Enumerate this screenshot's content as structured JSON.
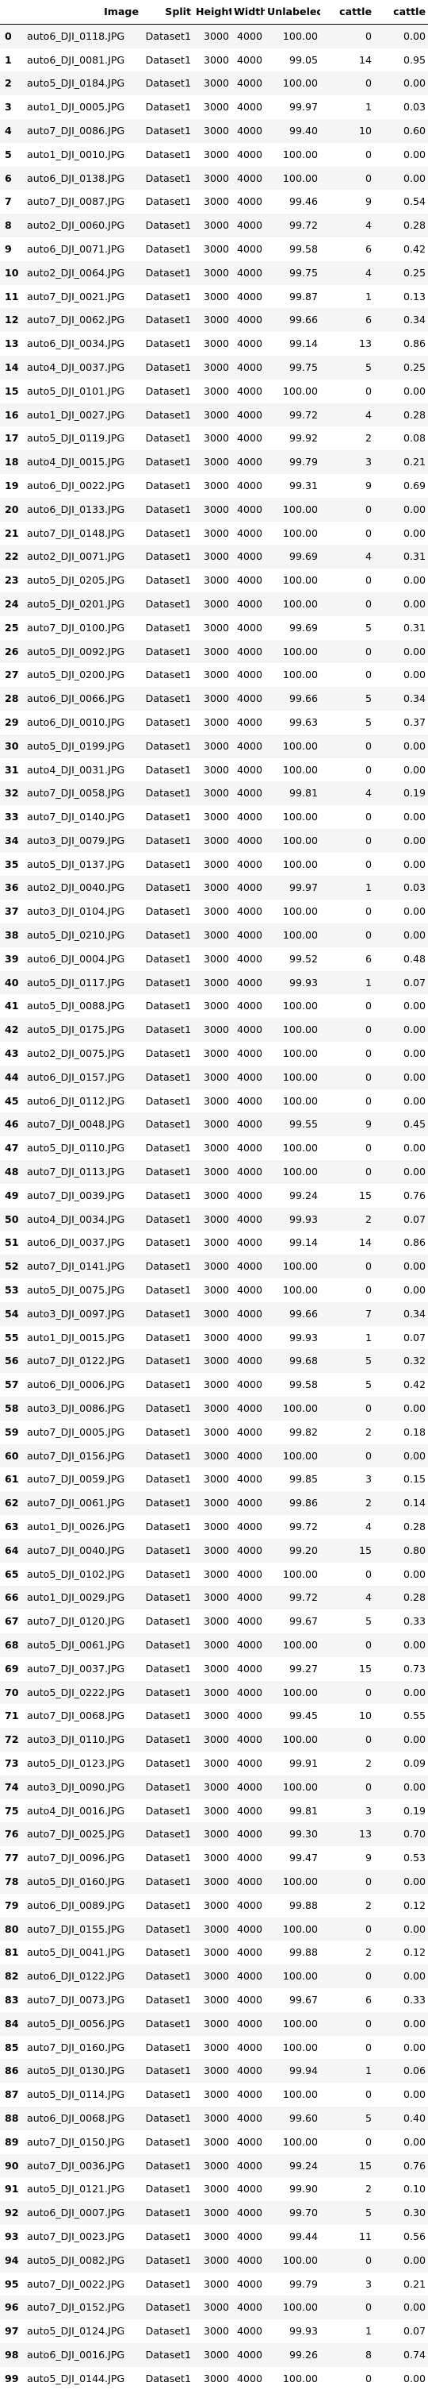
{
  "columns": [
    "",
    "Image",
    "Split",
    "Height",
    "Width",
    "Unlabeled",
    "cattle",
    "cattle"
  ],
  "rows": [
    [
      "0",
      "auto6_DJI_0118.JPG",
      "Dataset1",
      "3000",
      "4000",
      "100.00",
      "0",
      "0.00"
    ],
    [
      "1",
      "auto6_DJI_0081.JPG",
      "Dataset1",
      "3000",
      "4000",
      "99.05",
      "14",
      "0.95"
    ],
    [
      "2",
      "auto5_DJI_0184.JPG",
      "Dataset1",
      "3000",
      "4000",
      "100.00",
      "0",
      "0.00"
    ],
    [
      "3",
      "auto1_DJI_0005.JPG",
      "Dataset1",
      "3000",
      "4000",
      "99.97",
      "1",
      "0.03"
    ],
    [
      "4",
      "auto7_DJI_0086.JPG",
      "Dataset1",
      "3000",
      "4000",
      "99.40",
      "10",
      "0.60"
    ],
    [
      "5",
      "auto1_DJI_0010.JPG",
      "Dataset1",
      "3000",
      "4000",
      "100.00",
      "0",
      "0.00"
    ],
    [
      "6",
      "auto6_DJI_0138.JPG",
      "Dataset1",
      "3000",
      "4000",
      "100.00",
      "0",
      "0.00"
    ],
    [
      "7",
      "auto7_DJI_0087.JPG",
      "Dataset1",
      "3000",
      "4000",
      "99.46",
      "9",
      "0.54"
    ],
    [
      "8",
      "auto2_DJI_0060.JPG",
      "Dataset1",
      "3000",
      "4000",
      "99.72",
      "4",
      "0.28"
    ],
    [
      "9",
      "auto6_DJI_0071.JPG",
      "Dataset1",
      "3000",
      "4000",
      "99.58",
      "6",
      "0.42"
    ],
    [
      "10",
      "auto2_DJI_0064.JPG",
      "Dataset1",
      "3000",
      "4000",
      "99.75",
      "4",
      "0.25"
    ],
    [
      "11",
      "auto7_DJI_0021.JPG",
      "Dataset1",
      "3000",
      "4000",
      "99.87",
      "1",
      "0.13"
    ],
    [
      "12",
      "auto7_DJI_0062.JPG",
      "Dataset1",
      "3000",
      "4000",
      "99.66",
      "6",
      "0.34"
    ],
    [
      "13",
      "auto6_DJI_0034.JPG",
      "Dataset1",
      "3000",
      "4000",
      "99.14",
      "13",
      "0.86"
    ],
    [
      "14",
      "auto4_DJI_0037.JPG",
      "Dataset1",
      "3000",
      "4000",
      "99.75",
      "5",
      "0.25"
    ],
    [
      "15",
      "auto5_DJI_0101.JPG",
      "Dataset1",
      "3000",
      "4000",
      "100.00",
      "0",
      "0.00"
    ],
    [
      "16",
      "auto1_DJI_0027.JPG",
      "Dataset1",
      "3000",
      "4000",
      "99.72",
      "4",
      "0.28"
    ],
    [
      "17",
      "auto5_DJI_0119.JPG",
      "Dataset1",
      "3000",
      "4000",
      "99.92",
      "2",
      "0.08"
    ],
    [
      "18",
      "auto4_DJI_0015.JPG",
      "Dataset1",
      "3000",
      "4000",
      "99.79",
      "3",
      "0.21"
    ],
    [
      "19",
      "auto6_DJI_0022.JPG",
      "Dataset1",
      "3000",
      "4000",
      "99.31",
      "9",
      "0.69"
    ],
    [
      "20",
      "auto6_DJI_0133.JPG",
      "Dataset1",
      "3000",
      "4000",
      "100.00",
      "0",
      "0.00"
    ],
    [
      "21",
      "auto7_DJI_0148.JPG",
      "Dataset1",
      "3000",
      "4000",
      "100.00",
      "0",
      "0.00"
    ],
    [
      "22",
      "auto2_DJI_0071.JPG",
      "Dataset1",
      "3000",
      "4000",
      "99.69",
      "4",
      "0.31"
    ],
    [
      "23",
      "auto5_DJI_0205.JPG",
      "Dataset1",
      "3000",
      "4000",
      "100.00",
      "0",
      "0.00"
    ],
    [
      "24",
      "auto5_DJI_0201.JPG",
      "Dataset1",
      "3000",
      "4000",
      "100.00",
      "0",
      "0.00"
    ],
    [
      "25",
      "auto7_DJI_0100.JPG",
      "Dataset1",
      "3000",
      "4000",
      "99.69",
      "5",
      "0.31"
    ],
    [
      "26",
      "auto5_DJI_0092.JPG",
      "Dataset1",
      "3000",
      "4000",
      "100.00",
      "0",
      "0.00"
    ],
    [
      "27",
      "auto5_DJI_0200.JPG",
      "Dataset1",
      "3000",
      "4000",
      "100.00",
      "0",
      "0.00"
    ],
    [
      "28",
      "auto6_DJI_0066.JPG",
      "Dataset1",
      "3000",
      "4000",
      "99.66",
      "5",
      "0.34"
    ],
    [
      "29",
      "auto6_DJI_0010.JPG",
      "Dataset1",
      "3000",
      "4000",
      "99.63",
      "5",
      "0.37"
    ],
    [
      "30",
      "auto5_DJI_0199.JPG",
      "Dataset1",
      "3000",
      "4000",
      "100.00",
      "0",
      "0.00"
    ],
    [
      "31",
      "auto4_DJI_0031.JPG",
      "Dataset1",
      "3000",
      "4000",
      "100.00",
      "0",
      "0.00"
    ],
    [
      "32",
      "auto7_DJI_0058.JPG",
      "Dataset1",
      "3000",
      "4000",
      "99.81",
      "4",
      "0.19"
    ],
    [
      "33",
      "auto7_DJI_0140.JPG",
      "Dataset1",
      "3000",
      "4000",
      "100.00",
      "0",
      "0.00"
    ],
    [
      "34",
      "auto3_DJI_0079.JPG",
      "Dataset1",
      "3000",
      "4000",
      "100.00",
      "0",
      "0.00"
    ],
    [
      "35",
      "auto5_DJI_0137.JPG",
      "Dataset1",
      "3000",
      "4000",
      "100.00",
      "0",
      "0.00"
    ],
    [
      "36",
      "auto2_DJI_0040.JPG",
      "Dataset1",
      "3000",
      "4000",
      "99.97",
      "1",
      "0.03"
    ],
    [
      "37",
      "auto3_DJI_0104.JPG",
      "Dataset1",
      "3000",
      "4000",
      "100.00",
      "0",
      "0.00"
    ],
    [
      "38",
      "auto5_DJI_0210.JPG",
      "Dataset1",
      "3000",
      "4000",
      "100.00",
      "0",
      "0.00"
    ],
    [
      "39",
      "auto6_DJI_0004.JPG",
      "Dataset1",
      "3000",
      "4000",
      "99.52",
      "6",
      "0.48"
    ],
    [
      "40",
      "auto5_DJI_0117.JPG",
      "Dataset1",
      "3000",
      "4000",
      "99.93",
      "1",
      "0.07"
    ],
    [
      "41",
      "auto5_DJI_0088.JPG",
      "Dataset1",
      "3000",
      "4000",
      "100.00",
      "0",
      "0.00"
    ],
    [
      "42",
      "auto5_DJI_0175.JPG",
      "Dataset1",
      "3000",
      "4000",
      "100.00",
      "0",
      "0.00"
    ],
    [
      "43",
      "auto2_DJI_0075.JPG",
      "Dataset1",
      "3000",
      "4000",
      "100.00",
      "0",
      "0.00"
    ],
    [
      "44",
      "auto6_DJI_0157.JPG",
      "Dataset1",
      "3000",
      "4000",
      "100.00",
      "0",
      "0.00"
    ],
    [
      "45",
      "auto6_DJI_0112.JPG",
      "Dataset1",
      "3000",
      "4000",
      "100.00",
      "0",
      "0.00"
    ],
    [
      "46",
      "auto7_DJI_0048.JPG",
      "Dataset1",
      "3000",
      "4000",
      "99.55",
      "9",
      "0.45"
    ],
    [
      "47",
      "auto5_DJI_0110.JPG",
      "Dataset1",
      "3000",
      "4000",
      "100.00",
      "0",
      "0.00"
    ],
    [
      "48",
      "auto7_DJI_0113.JPG",
      "Dataset1",
      "3000",
      "4000",
      "100.00",
      "0",
      "0.00"
    ],
    [
      "49",
      "auto7_DJI_0039.JPG",
      "Dataset1",
      "3000",
      "4000",
      "99.24",
      "15",
      "0.76"
    ],
    [
      "50",
      "auto4_DJI_0034.JPG",
      "Dataset1",
      "3000",
      "4000",
      "99.93",
      "2",
      "0.07"
    ],
    [
      "51",
      "auto6_DJI_0037.JPG",
      "Dataset1",
      "3000",
      "4000",
      "99.14",
      "14",
      "0.86"
    ],
    [
      "52",
      "auto7_DJI_0141.JPG",
      "Dataset1",
      "3000",
      "4000",
      "100.00",
      "0",
      "0.00"
    ],
    [
      "53",
      "auto5_DJI_0075.JPG",
      "Dataset1",
      "3000",
      "4000",
      "100.00",
      "0",
      "0.00"
    ],
    [
      "54",
      "auto3_DJI_0097.JPG",
      "Dataset1",
      "3000",
      "4000",
      "99.66",
      "7",
      "0.34"
    ],
    [
      "55",
      "auto1_DJI_0015.JPG",
      "Dataset1",
      "3000",
      "4000",
      "99.93",
      "1",
      "0.07"
    ],
    [
      "56",
      "auto7_DJI_0122.JPG",
      "Dataset1",
      "3000",
      "4000",
      "99.68",
      "5",
      "0.32"
    ],
    [
      "57",
      "auto6_DJI_0006.JPG",
      "Dataset1",
      "3000",
      "4000",
      "99.58",
      "5",
      "0.42"
    ],
    [
      "58",
      "auto3_DJI_0086.JPG",
      "Dataset1",
      "3000",
      "4000",
      "100.00",
      "0",
      "0.00"
    ],
    [
      "59",
      "auto7_DJI_0005.JPG",
      "Dataset1",
      "3000",
      "4000",
      "99.82",
      "2",
      "0.18"
    ],
    [
      "60",
      "auto7_DJI_0156.JPG",
      "Dataset1",
      "3000",
      "4000",
      "100.00",
      "0",
      "0.00"
    ],
    [
      "61",
      "auto7_DJI_0059.JPG",
      "Dataset1",
      "3000",
      "4000",
      "99.85",
      "3",
      "0.15"
    ],
    [
      "62",
      "auto7_DJI_0061.JPG",
      "Dataset1",
      "3000",
      "4000",
      "99.86",
      "2",
      "0.14"
    ],
    [
      "63",
      "auto1_DJI_0026.JPG",
      "Dataset1",
      "3000",
      "4000",
      "99.72",
      "4",
      "0.28"
    ],
    [
      "64",
      "auto7_DJI_0040.JPG",
      "Dataset1",
      "3000",
      "4000",
      "99.20",
      "15",
      "0.80"
    ],
    [
      "65",
      "auto5_DJI_0102.JPG",
      "Dataset1",
      "3000",
      "4000",
      "100.00",
      "0",
      "0.00"
    ],
    [
      "66",
      "auto1_DJI_0029.JPG",
      "Dataset1",
      "3000",
      "4000",
      "99.72",
      "4",
      "0.28"
    ],
    [
      "67",
      "auto7_DJI_0120.JPG",
      "Dataset1",
      "3000",
      "4000",
      "99.67",
      "5",
      "0.33"
    ],
    [
      "68",
      "auto5_DJI_0061.JPG",
      "Dataset1",
      "3000",
      "4000",
      "100.00",
      "0",
      "0.00"
    ],
    [
      "69",
      "auto7_DJI_0037.JPG",
      "Dataset1",
      "3000",
      "4000",
      "99.27",
      "15",
      "0.73"
    ],
    [
      "70",
      "auto5_DJI_0222.JPG",
      "Dataset1",
      "3000",
      "4000",
      "100.00",
      "0",
      "0.00"
    ],
    [
      "71",
      "auto7_DJI_0068.JPG",
      "Dataset1",
      "3000",
      "4000",
      "99.45",
      "10",
      "0.55"
    ],
    [
      "72",
      "auto3_DJI_0110.JPG",
      "Dataset1",
      "3000",
      "4000",
      "100.00",
      "0",
      "0.00"
    ],
    [
      "73",
      "auto5_DJI_0123.JPG",
      "Dataset1",
      "3000",
      "4000",
      "99.91",
      "2",
      "0.09"
    ],
    [
      "74",
      "auto3_DJI_0090.JPG",
      "Dataset1",
      "3000",
      "4000",
      "100.00",
      "0",
      "0.00"
    ],
    [
      "75",
      "auto4_DJI_0016.JPG",
      "Dataset1",
      "3000",
      "4000",
      "99.81",
      "3",
      "0.19"
    ],
    [
      "76",
      "auto7_DJI_0025.JPG",
      "Dataset1",
      "3000",
      "4000",
      "99.30",
      "13",
      "0.70"
    ],
    [
      "77",
      "auto7_DJI_0096.JPG",
      "Dataset1",
      "3000",
      "4000",
      "99.47",
      "9",
      "0.53"
    ],
    [
      "78",
      "auto5_DJI_0160.JPG",
      "Dataset1",
      "3000",
      "4000",
      "100.00",
      "0",
      "0.00"
    ],
    [
      "79",
      "auto6_DJI_0089.JPG",
      "Dataset1",
      "3000",
      "4000",
      "99.88",
      "2",
      "0.12"
    ],
    [
      "80",
      "auto7_DJI_0155.JPG",
      "Dataset1",
      "3000",
      "4000",
      "100.00",
      "0",
      "0.00"
    ],
    [
      "81",
      "auto5_DJI_0041.JPG",
      "Dataset1",
      "3000",
      "4000",
      "99.88",
      "2",
      "0.12"
    ],
    [
      "82",
      "auto6_DJI_0122.JPG",
      "Dataset1",
      "3000",
      "4000",
      "100.00",
      "0",
      "0.00"
    ],
    [
      "83",
      "auto7_DJI_0073.JPG",
      "Dataset1",
      "3000",
      "4000",
      "99.67",
      "6",
      "0.33"
    ],
    [
      "84",
      "auto5_DJI_0056.JPG",
      "Dataset1",
      "3000",
      "4000",
      "100.00",
      "0",
      "0.00"
    ],
    [
      "85",
      "auto7_DJI_0160.JPG",
      "Dataset1",
      "3000",
      "4000",
      "100.00",
      "0",
      "0.00"
    ],
    [
      "86",
      "auto5_DJI_0130.JPG",
      "Dataset1",
      "3000",
      "4000",
      "99.94",
      "1",
      "0.06"
    ],
    [
      "87",
      "auto5_DJI_0114.JPG",
      "Dataset1",
      "3000",
      "4000",
      "100.00",
      "0",
      "0.00"
    ],
    [
      "88",
      "auto6_DJI_0068.JPG",
      "Dataset1",
      "3000",
      "4000",
      "99.60",
      "5",
      "0.40"
    ],
    [
      "89",
      "auto7_DJI_0150.JPG",
      "Dataset1",
      "3000",
      "4000",
      "100.00",
      "0",
      "0.00"
    ],
    [
      "90",
      "auto7_DJI_0036.JPG",
      "Dataset1",
      "3000",
      "4000",
      "99.24",
      "15",
      "0.76"
    ],
    [
      "91",
      "auto5_DJI_0121.JPG",
      "Dataset1",
      "3000",
      "4000",
      "99.90",
      "2",
      "0.10"
    ],
    [
      "92",
      "auto6_DJI_0007.JPG",
      "Dataset1",
      "3000",
      "4000",
      "99.70",
      "5",
      "0.30"
    ],
    [
      "93",
      "auto7_DJI_0023.JPG",
      "Dataset1",
      "3000",
      "4000",
      "99.44",
      "11",
      "0.56"
    ],
    [
      "94",
      "auto5_DJI_0082.JPG",
      "Dataset1",
      "3000",
      "4000",
      "100.00",
      "0",
      "0.00"
    ],
    [
      "95",
      "auto7_DJI_0022.JPG",
      "Dataset1",
      "3000",
      "4000",
      "99.79",
      "3",
      "0.21"
    ],
    [
      "96",
      "auto7_DJI_0152.JPG",
      "Dataset1",
      "3000",
      "4000",
      "100.00",
      "0",
      "0.00"
    ],
    [
      "97",
      "auto5_DJI_0124.JPG",
      "Dataset1",
      "3000",
      "4000",
      "99.93",
      "1",
      "0.07"
    ],
    [
      "98",
      "auto6_DJI_0016.JPG",
      "Dataset1",
      "3000",
      "4000",
      "99.26",
      "8",
      "0.74"
    ],
    [
      "99",
      "auto5_DJI_0144.JPG",
      "Dataset1",
      "3000",
      "4000",
      "100.00",
      "0",
      "0.00"
    ]
  ]
}
